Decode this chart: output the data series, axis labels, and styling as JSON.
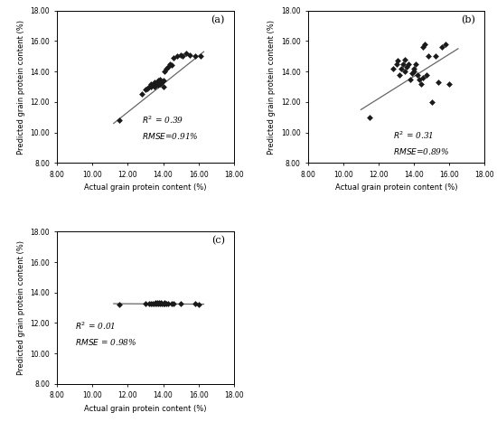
{
  "panel_labels": [
    "(a)",
    "(b)",
    "(c)"
  ],
  "xlim": [
    8.0,
    18.0
  ],
  "ylim": [
    8.0,
    18.0
  ],
  "xticks": [
    8.0,
    10.0,
    12.0,
    14.0,
    16.0,
    18.0
  ],
  "yticks": [
    8.0,
    10.0,
    12.0,
    14.0,
    16.0,
    18.0
  ],
  "scatter_color": "#1a1a1a",
  "line_color": "#666666",
  "panel_a": {
    "x": [
      11.5,
      12.8,
      13.0,
      13.1,
      13.2,
      13.3,
      13.3,
      13.4,
      13.5,
      13.5,
      13.6,
      13.7,
      13.7,
      13.8,
      13.8,
      13.9,
      14.0,
      14.0,
      14.1,
      14.2,
      14.3,
      14.4,
      14.5,
      14.6,
      14.8,
      15.0,
      15.1,
      15.3,
      15.5,
      15.8,
      16.1
    ],
    "y": [
      10.8,
      12.5,
      12.8,
      12.9,
      13.0,
      13.0,
      13.2,
      13.1,
      13.0,
      13.3,
      13.2,
      13.1,
      13.4,
      13.2,
      13.5,
      13.3,
      13.0,
      13.4,
      14.0,
      14.2,
      14.3,
      14.5,
      14.4,
      14.9,
      15.0,
      15.1,
      15.0,
      15.2,
      15.1,
      15.0,
      15.0
    ],
    "r2_text": "$R^2$ = 0.39",
    "rmse_text": "$RMSE$=0.91%",
    "line_x": [
      11.2,
      16.3
    ],
    "line_y": [
      10.6,
      15.3
    ]
  },
  "panel_b": {
    "x": [
      11.5,
      12.8,
      13.0,
      13.1,
      13.2,
      13.3,
      13.4,
      13.5,
      13.5,
      13.6,
      13.7,
      13.8,
      13.9,
      14.0,
      14.0,
      14.1,
      14.2,
      14.3,
      14.4,
      14.5,
      14.5,
      14.6,
      14.7,
      14.8,
      15.0,
      15.2,
      15.4,
      15.6,
      15.8,
      16.0
    ],
    "y": [
      11.0,
      14.2,
      14.5,
      14.7,
      13.8,
      14.2,
      14.5,
      14.0,
      14.8,
      14.3,
      14.5,
      13.5,
      13.9,
      14.0,
      14.2,
      14.5,
      13.8,
      13.5,
      13.2,
      13.6,
      15.6,
      15.8,
      13.8,
      15.0,
      12.0,
      15.0,
      13.3,
      15.6,
      15.8,
      13.2
    ],
    "r2_text": "$R^2$ = 0.31",
    "rmse_text": "$RMSE$=0.89%",
    "line_x": [
      11.0,
      16.5
    ],
    "line_y": [
      11.5,
      15.5
    ]
  },
  "panel_c": {
    "x": [
      11.5,
      13.0,
      13.2,
      13.3,
      13.4,
      13.5,
      13.55,
      13.6,
      13.65,
      13.7,
      13.75,
      13.8,
      13.85,
      13.9,
      14.0,
      14.05,
      14.1,
      14.2,
      14.3,
      14.5,
      14.6,
      15.0,
      15.8,
      16.0
    ],
    "y": [
      13.2,
      13.3,
      13.3,
      13.28,
      13.3,
      13.3,
      13.32,
      13.3,
      13.31,
      13.3,
      13.32,
      13.3,
      13.31,
      13.3,
      13.3,
      13.32,
      13.3,
      13.3,
      13.3,
      13.3,
      13.3,
      13.3,
      13.3,
      13.2
    ],
    "r2_text": "$R^2$ = 0.01",
    "rmse_text": "$RMSE$ = 0.98%",
    "line_x": [
      11.2,
      16.3
    ],
    "line_y": [
      13.27,
      13.24
    ]
  }
}
